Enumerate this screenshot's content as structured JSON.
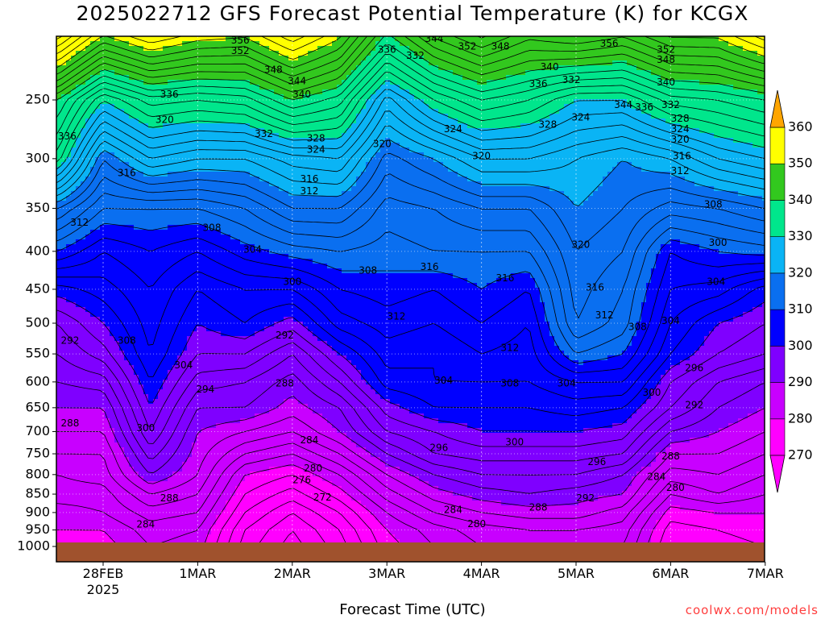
{
  "chart_data": {
    "type": "heatmap",
    "title": "2025022712 GFS Forecast Potential Temperature (K) for KCGX",
    "xlabel": "Forecast Time (UTC)",
    "ylabel": "",
    "x_ticks": [
      {
        "label": "28FEB",
        "sub": "2025",
        "day": 0
      },
      {
        "label": "1MAR",
        "sub": "",
        "day": 1
      },
      {
        "label": "2MAR",
        "sub": "",
        "day": 2
      },
      {
        "label": "3MAR",
        "sub": "",
        "day": 3
      },
      {
        "label": "4MAR",
        "sub": "",
        "day": 4
      },
      {
        "label": "5MAR",
        "sub": "",
        "day": 5
      },
      {
        "label": "6MAR",
        "sub": "",
        "day": 6
      },
      {
        "label": "7MAR",
        "sub": "",
        "day": 7
      }
    ],
    "x_range": [
      -0.48,
      7.0
    ],
    "y_ticks": [
      250,
      300,
      350,
      400,
      450,
      500,
      550,
      600,
      650,
      700,
      750,
      800,
      850,
      900,
      950,
      1000
    ],
    "y_range_hpa": [
      200,
      1000
    ],
    "y_scale": "log",
    "grid": true,
    "colorbar": {
      "levels": [
        270,
        280,
        290,
        300,
        310,
        320,
        330,
        340,
        350,
        360
      ],
      "colors": [
        "#ff00ff",
        "#c800ff",
        "#7f00ff",
        "#0000ff",
        "#0a6ff0",
        "#0ab4f5",
        "#00e68c",
        "#32c81e",
        "#ffff00",
        "#ffa500"
      ],
      "extend": "both",
      "placement": "right"
    },
    "pressure_levels_hpa": [
      200,
      250,
      300,
      350,
      400,
      450,
      500,
      550,
      600,
      650,
      700,
      750,
      800,
      850,
      900,
      950,
      1000
    ],
    "times_day": [
      -0.48,
      0.0,
      0.5,
      1.0,
      1.5,
      2.0,
      2.5,
      3.0,
      3.5,
      4.0,
      4.5,
      5.0,
      5.5,
      6.0,
      6.5,
      7.0
    ],
    "theta_k": [
      [
        361,
        352,
        356,
        353,
        352,
        357,
        352,
        341,
        348,
        352,
        348,
        350,
        348,
        352,
        352,
        357
      ],
      [
        340,
        330,
        335,
        334,
        335,
        340,
        337,
        325,
        332,
        336,
        334,
        330,
        330,
        335,
        336,
        338
      ],
      [
        333,
        318,
        324,
        322,
        322,
        325,
        326,
        317,
        320,
        324,
        324,
        322,
        320,
        322,
        326,
        328
      ],
      [
        318,
        312,
        312,
        312,
        314,
        318,
        318,
        313,
        314,
        316,
        316,
        320,
        318,
        315,
        316,
        318
      ],
      [
        310,
        306,
        308,
        306,
        309,
        311,
        312,
        311,
        312,
        312,
        312,
        318,
        316,
        308,
        310,
        311
      ],
      [
        301,
        303,
        306,
        302,
        304,
        304,
        308,
        309,
        308,
        310,
        308,
        317,
        314,
        306,
        305,
        301
      ],
      [
        296,
        300,
        305,
        300,
        302,
        299,
        305,
        307,
        306,
        308,
        306,
        316,
        313,
        304,
        300,
        298
      ],
      [
        294,
        297,
        304,
        298,
        298,
        294,
        300,
        305,
        304,
        306,
        305,
        312,
        310,
        302,
        298,
        296
      ],
      [
        292,
        293,
        302,
        295,
        294,
        291,
        296,
        303,
        304,
        304,
        304,
        306,
        306,
        298,
        294,
        292
      ],
      [
        290,
        290,
        300,
        292,
        292,
        289,
        292,
        299,
        302,
        302,
        302,
        303,
        302,
        296,
        292,
        290
      ],
      [
        288,
        288,
        298,
        290,
        288,
        286,
        290,
        296,
        298,
        300,
        300,
        300,
        299,
        292,
        290,
        288
      ],
      [
        286,
        286,
        295,
        289,
        284,
        282,
        286,
        292,
        296,
        297,
        297,
        297,
        296,
        288,
        288,
        286
      ],
      [
        284,
        285,
        292,
        288,
        280,
        278,
        282,
        288,
        292,
        294,
        294,
        294,
        292,
        285,
        286,
        284
      ],
      [
        283,
        283,
        288,
        286,
        278,
        275,
        279,
        285,
        289,
        291,
        292,
        291,
        290,
        282,
        284,
        282
      ],
      [
        281,
        282,
        285,
        284,
        276,
        272,
        276,
        282,
        286,
        288,
        289,
        289,
        287,
        279,
        280,
        280
      ],
      [
        280,
        280,
        283,
        282,
        274,
        270,
        274,
        280,
        283,
        285,
        286,
        286,
        285,
        277,
        278,
        279
      ],
      [
        279,
        279,
        282,
        281,
        273,
        269,
        273,
        279,
        282,
        284,
        285,
        285,
        284,
        276,
        277,
        278
      ]
    ],
    "contour_labels": [
      {
        "text": "356",
        "day": 1.45,
        "p": 208
      },
      {
        "text": "352",
        "day": 1.45,
        "p": 215
      },
      {
        "text": "348",
        "day": 1.8,
        "p": 228
      },
      {
        "text": "344",
        "day": 2.05,
        "p": 236
      },
      {
        "text": "340",
        "day": 2.1,
        "p": 246
      },
      {
        "text": "336",
        "day": 0.7,
        "p": 246
      },
      {
        "text": "336",
        "day": -0.38,
        "p": 280
      },
      {
        "text": "320",
        "day": 0.65,
        "p": 266
      },
      {
        "text": "332",
        "day": 1.7,
        "p": 278
      },
      {
        "text": "328",
        "day": 2.25,
        "p": 282
      },
      {
        "text": "324",
        "day": 2.25,
        "p": 292
      },
      {
        "text": "320",
        "day": 2.95,
        "p": 287
      },
      {
        "text": "316",
        "day": 0.25,
        "p": 314
      },
      {
        "text": "316",
        "day": 2.18,
        "p": 320
      },
      {
        "text": "312",
        "day": 2.18,
        "p": 332
      },
      {
        "text": "312",
        "day": -0.25,
        "p": 366
      },
      {
        "text": "308",
        "day": 1.15,
        "p": 372
      },
      {
        "text": "304",
        "day": 1.58,
        "p": 398
      },
      {
        "text": "308",
        "day": 2.8,
        "p": 425
      },
      {
        "text": "316",
        "day": 3.45,
        "p": 420
      },
      {
        "text": "316",
        "day": 4.25,
        "p": 435
      },
      {
        "text": "300",
        "day": 2.0,
        "p": 440
      },
      {
        "text": "312",
        "day": 3.1,
        "p": 490
      },
      {
        "text": "292",
        "day": -0.35,
        "p": 528
      },
      {
        "text": "308",
        "day": 0.25,
        "p": 528
      },
      {
        "text": "292",
        "day": 1.92,
        "p": 520
      },
      {
        "text": "304",
        "day": 0.85,
        "p": 570
      },
      {
        "text": "294",
        "day": 1.08,
        "p": 615
      },
      {
        "text": "288",
        "day": 1.92,
        "p": 603
      },
      {
        "text": "304",
        "day": 3.6,
        "p": 598
      },
      {
        "text": "308",
        "day": 4.3,
        "p": 603
      },
      {
        "text": "304",
        "day": 4.9,
        "p": 603
      },
      {
        "text": "312",
        "day": 4.3,
        "p": 540
      },
      {
        "text": "288",
        "day": -0.35,
        "p": 683
      },
      {
        "text": "300",
        "day": 0.45,
        "p": 693
      },
      {
        "text": "284",
        "day": 2.18,
        "p": 720
      },
      {
        "text": "280",
        "day": 2.22,
        "p": 785
      },
      {
        "text": "276",
        "day": 2.1,
        "p": 815
      },
      {
        "text": "272",
        "day": 2.32,
        "p": 860
      },
      {
        "text": "288",
        "day": 0.7,
        "p": 862
      },
      {
        "text": "284",
        "day": 0.45,
        "p": 935
      },
      {
        "text": "296",
        "day": 3.55,
        "p": 737
      },
      {
        "text": "300",
        "day": 4.35,
        "p": 724
      },
      {
        "text": "288",
        "day": 4.6,
        "p": 887
      },
      {
        "text": "284",
        "day": 3.7,
        "p": 893
      },
      {
        "text": "280",
        "day": 3.95,
        "p": 933
      },
      {
        "text": "292",
        "day": 5.1,
        "p": 862
      },
      {
        "text": "296",
        "day": 5.22,
        "p": 770
      },
      {
        "text": "288",
        "day": 6.0,
        "p": 757
      },
      {
        "text": "284",
        "day": 5.85,
        "p": 806
      },
      {
        "text": "280",
        "day": 6.05,
        "p": 834
      },
      {
        "text": "300",
        "day": 5.8,
        "p": 621
      },
      {
        "text": "296",
        "day": 6.25,
        "p": 575
      },
      {
        "text": "292",
        "day": 6.25,
        "p": 645
      },
      {
        "text": "304",
        "day": 6.48,
        "p": 440
      },
      {
        "text": "300",
        "day": 6.5,
        "p": 390
      },
      {
        "text": "308",
        "day": 6.45,
        "p": 346
      },
      {
        "text": "304",
        "day": 6.0,
        "p": 497
      },
      {
        "text": "308",
        "day": 5.65,
        "p": 506
      },
      {
        "text": "312",
        "day": 5.3,
        "p": 488
      },
      {
        "text": "316",
        "day": 5.2,
        "p": 448
      },
      {
        "text": "320",
        "day": 5.05,
        "p": 392
      },
      {
        "text": "312",
        "day": 6.1,
        "p": 312
      },
      {
        "text": "316",
        "day": 6.12,
        "p": 298
      },
      {
        "text": "320",
        "day": 6.1,
        "p": 283
      },
      {
        "text": "324",
        "day": 6.1,
        "p": 274
      },
      {
        "text": "328",
        "day": 6.1,
        "p": 265
      },
      {
        "text": "332",
        "day": 6.0,
        "p": 254
      },
      {
        "text": "336",
        "day": 5.72,
        "p": 256
      },
      {
        "text": "344",
        "day": 5.5,
        "p": 254
      },
      {
        "text": "340",
        "day": 5.95,
        "p": 237
      },
      {
        "text": "348",
        "day": 5.95,
        "p": 221
      },
      {
        "text": "352",
        "day": 5.95,
        "p": 214
      },
      {
        "text": "356",
        "day": 5.35,
        "p": 210
      },
      {
        "text": "336",
        "day": 4.6,
        "p": 238
      },
      {
        "text": "332",
        "day": 4.95,
        "p": 235
      },
      {
        "text": "340",
        "day": 4.72,
        "p": 226
      },
      {
        "text": "348",
        "day": 4.2,
        "p": 212
      },
      {
        "text": "352",
        "day": 3.85,
        "p": 212
      },
      {
        "text": "344",
        "day": 3.5,
        "p": 207
      },
      {
        "text": "336",
        "day": 3.0,
        "p": 214
      },
      {
        "text": "332",
        "day": 3.3,
        "p": 218
      },
      {
        "text": "328",
        "day": 4.7,
        "p": 270
      },
      {
        "text": "324",
        "day": 5.05,
        "p": 264
      },
      {
        "text": "324",
        "day": 3.7,
        "p": 274
      },
      {
        "text": "320",
        "day": 4.0,
        "p": 298
      }
    ]
  },
  "credit": "coolwx.com/models"
}
